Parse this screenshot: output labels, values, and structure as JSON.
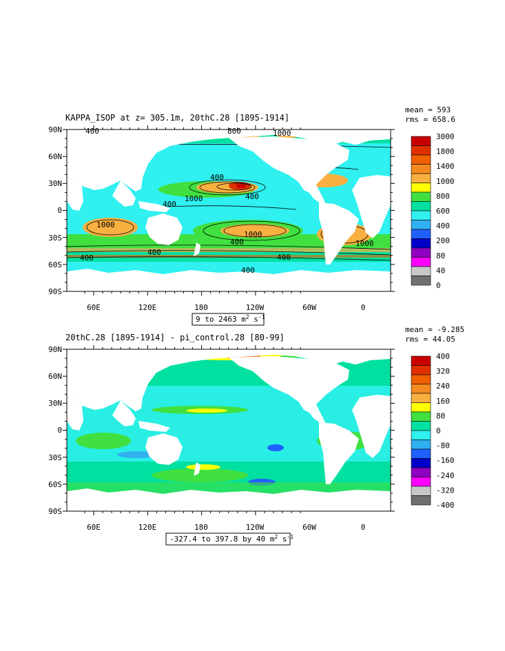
{
  "panels": [
    {
      "title": "KAPPA_ISOP at z= 305.1m, 20thC.28 [1895-1914]",
      "mean": "mean = 593",
      "rms": "rms = 658.6",
      "range_text": "9 to 2463 m",
      "units_sup": "2",
      "units_tail": " s",
      "units_sup2": "-1",
      "colorbar": {
        "labels": [
          "3000",
          "1800",
          "1400",
          "1000",
          "800",
          "600",
          "400",
          "200",
          "80",
          "40",
          "0"
        ],
        "colors": [
          "#c80000",
          "#e03000",
          "#f06000",
          "#f58a20",
          "#f8b040",
          "#ffff00",
          "#40e040",
          "#00e0a0",
          "#30f0f0",
          "#30b0f0",
          "#2060ff",
          "#0000c8",
          "#9000c0",
          "#ff00ff",
          "#c8c8c8",
          "#707070"
        ]
      },
      "contour_labels": [
        "400",
        "800",
        "1000",
        "400",
        "1000",
        "400",
        "400",
        "1000",
        "400",
        "1000",
        "400",
        "400",
        "400",
        "400",
        "1000"
      ]
    },
    {
      "title": "20thC.28 [1895-1914] - pi_control.28 [80-99]",
      "mean": "mean = -9.285",
      "rms": "rms = 44.05",
      "range_text": "-327.4 to 397.8 by 40 m",
      "units_sup": "2",
      "units_tail": " s",
      "units_sup2": "-1",
      "colorbar": {
        "labels": [
          "400",
          "320",
          "240",
          "160",
          "80",
          "0",
          "-80",
          "-160",
          "-240",
          "-320",
          "-400"
        ],
        "colors": [
          "#c80000",
          "#e03000",
          "#f06000",
          "#f58a20",
          "#f8b040",
          "#ffff00",
          "#40e040",
          "#00e0a0",
          "#30f0f0",
          "#30b0f0",
          "#2060ff",
          "#0000c8",
          "#9000c0",
          "#ff00ff",
          "#c8c8c8",
          "#707070"
        ]
      }
    }
  ],
  "axes": {
    "lat_labels": [
      "90N",
      "60N",
      "30N",
      "0",
      "30S",
      "60S",
      "90S"
    ],
    "lon_labels": [
      "60E",
      "120E",
      "180",
      "120W",
      "60W",
      "0"
    ]
  }
}
